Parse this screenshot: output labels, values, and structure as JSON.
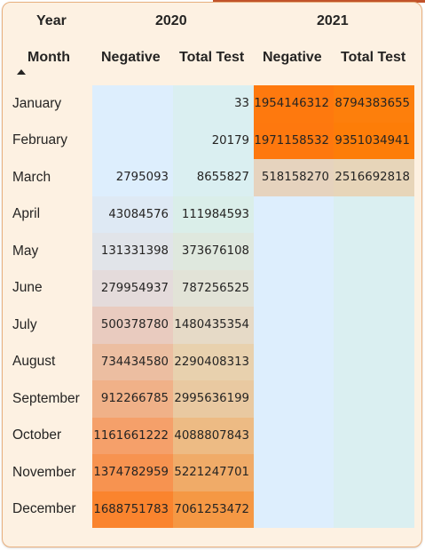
{
  "headers": {
    "year_label": "Year",
    "month_label": "Month",
    "year_2020": "2020",
    "year_2021": "2021",
    "negative_2020": "Negative",
    "total_test_2020": "Total Test",
    "negative_2021": "Negative",
    "total_test_2021": "Total Test"
  },
  "sort": {
    "column": "Month",
    "direction": "ascending",
    "icon": "sort-ascending-icon"
  },
  "colors": {
    "frame_bg": "#fdf1e2",
    "frame_border": "#e8b07f",
    "top_accent": "#c2532a",
    "empty_negative_2021": "#ddeefd",
    "empty_total_2021": "#daeff1"
  },
  "rows": [
    {
      "month": "January",
      "neg_2020": "",
      "total_2020": "33",
      "neg_2021": "1954146312",
      "total_2021": "8794383655",
      "colors": [
        "#ddeefd",
        "#daeff1",
        "#fe790e",
        "#fd7f0c"
      ]
    },
    {
      "month": "February",
      "neg_2020": "",
      "total_2020": "20179",
      "neg_2021": "1971158532",
      "total_2021": "9351034941",
      "colors": [
        "#ddeefd",
        "#daeff1",
        "#fe780e",
        "#fd7d08"
      ]
    },
    {
      "month": "March",
      "neg_2020": "2795093",
      "total_2020": "8655827",
      "neg_2021": "518158270",
      "total_2021": "2516692818",
      "colors": [
        "#ddeefd",
        "#daeff1",
        "#e6d3be",
        "#e7d5b9"
      ]
    },
    {
      "month": "April",
      "neg_2020": "43084576",
      "total_2020": "111984593",
      "neg_2021": "",
      "total_2021": "",
      "colors": [
        "#dee9f4",
        "#daeee9",
        "#ddeefd",
        "#daeff1"
      ]
    },
    {
      "month": "May",
      "neg_2020": "131331398",
      "total_2020": "373676108",
      "neg_2021": "",
      "total_2021": "",
      "colors": [
        "#e1e4e9",
        "#dfe8de",
        "#ddeefd",
        "#daeff1"
      ]
    },
    {
      "month": "June",
      "neg_2020": "279954937",
      "total_2020": "787256525",
      "neg_2021": "",
      "total_2021": "",
      "colors": [
        "#e4dbdb",
        "#e2e3d7",
        "#ddeefd",
        "#daeff1"
      ]
    },
    {
      "month": "July",
      "neg_2020": "500378780",
      "total_2020": "1480435354",
      "neg_2021": "",
      "total_2021": "",
      "colors": [
        "#e9cbbf",
        "#e6dac7",
        "#ddeefd",
        "#daeff1"
      ]
    },
    {
      "month": "August",
      "neg_2020": "734434580",
      "total_2020": "2290408313",
      "neg_2021": "",
      "total_2021": "",
      "colors": [
        "#ecbea1",
        "#e8d1ae",
        "#ddeefd",
        "#daeff1"
      ]
    },
    {
      "month": "September",
      "neg_2020": "912266785",
      "total_2020": "2995636199",
      "neg_2021": "",
      "total_2021": "",
      "colors": [
        "#f0b188",
        "#e9c9a1",
        "#ddeefd",
        "#daeff1"
      ]
    },
    {
      "month": "October",
      "neg_2020": "1161661222",
      "total_2020": "4088807843",
      "neg_2021": "",
      "total_2021": "",
      "colors": [
        "#f5a06a",
        "#edbb84",
        "#ddeefd",
        "#daeff1"
      ]
    },
    {
      "month": "November",
      "neg_2020": "1374782959",
      "total_2020": "5221247701",
      "neg_2021": "",
      "total_2021": "",
      "colors": [
        "#f79350",
        "#f0ab68",
        "#ddeefd",
        "#daeff1"
      ]
    },
    {
      "month": "December",
      "neg_2020": "1688751783",
      "total_2020": "7061253472",
      "neg_2021": "",
      "total_2021": "",
      "colors": [
        "#fa842e",
        "#f59844",
        "#ddeefd",
        "#daeff1"
      ]
    }
  ]
}
